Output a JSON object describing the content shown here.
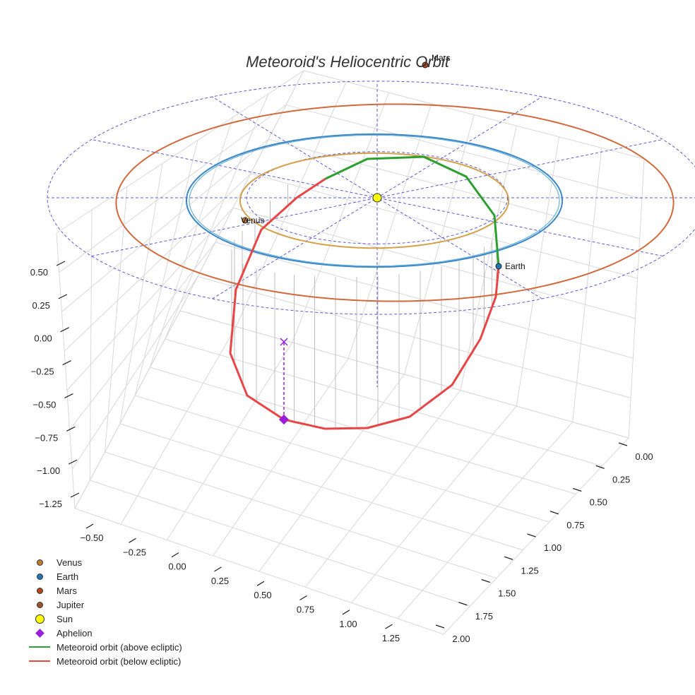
{
  "chart_data": {
    "type": "line",
    "projection": "3d",
    "title": "Meteoroid's Heliocentric Orbit",
    "axes": {
      "x": {
        "ticks": [
          -0.5,
          -0.25,
          0.0,
          0.25,
          0.5,
          0.75,
          1.0,
          1.25
        ],
        "tick_labels": [
          "−0.50",
          "−0.25",
          "0.00",
          "0.25",
          "0.50",
          "0.75",
          "1.00",
          "1.25"
        ]
      },
      "y": {
        "ticks": [
          0.0,
          0.25,
          0.5,
          0.75,
          1.0,
          1.25,
          1.5,
          1.75,
          2.0
        ],
        "tick_labels": [
          "0.00",
          "0.25",
          "0.50",
          "0.75",
          "1.00",
          "1.25",
          "1.50",
          "1.75",
          "2.00"
        ]
      },
      "z": {
        "ticks": [
          0.5,
          0.25,
          0.0,
          -0.25,
          -0.5,
          -0.75,
          -1.0,
          -1.25
        ],
        "tick_labels": [
          "0.50",
          "0.25",
          "0.00",
          "−0.25",
          "−0.50",
          "−0.75",
          "−1.00",
          "−1.25"
        ]
      }
    },
    "grid": true,
    "planet_orbits": [
      {
        "name": "Venus",
        "a_au": 0.72,
        "color": "#d4a04a"
      },
      {
        "name": "Earth",
        "a_au": 1.0,
        "color": "#3a87c8"
      },
      {
        "name": "Mars",
        "a_au": 1.52,
        "color": "#d2693c"
      }
    ],
    "planet_labels": [
      {
        "name": "Venus",
        "text": "Venus",
        "color": "#c47a30"
      },
      {
        "name": "Earth",
        "text": "Earth",
        "color": "#1f77b4"
      },
      {
        "name": "Mars",
        "text": "Mars",
        "color": "#b5441a"
      }
    ],
    "sun": {
      "x": 0,
      "y": 0,
      "z": 0,
      "color": "#ffff00"
    },
    "ecliptic_reference_grid": {
      "style": "dashed",
      "color": "#5a5ad8"
    },
    "meteoroid_orbit": {
      "segments": [
        {
          "name": "Meteoroid orbit (above ecliptic)",
          "color": "#2ca02c"
        },
        {
          "name": "Meteoroid orbit (below ecliptic)",
          "color": "#e84545"
        }
      ]
    },
    "aphelion": {
      "color": "#9b1fd8",
      "marker": "diamond"
    },
    "legend": {
      "position": "bottom-left",
      "entries": [
        {
          "label": "Venus",
          "kind": "dot",
          "color": "#c47a30"
        },
        {
          "label": "Earth",
          "kind": "dot",
          "color": "#1f77b4"
        },
        {
          "label": "Mars",
          "kind": "dot",
          "color": "#b5441a"
        },
        {
          "label": "Jupiter",
          "kind": "dot",
          "color": "#a0522d"
        },
        {
          "label": "Sun",
          "kind": "sun",
          "color": "#ffff00"
        },
        {
          "label": "Aphelion",
          "kind": "diamond",
          "color": "#9b1fd8"
        },
        {
          "label": "Meteoroid orbit (above ecliptic)",
          "kind": "line",
          "color": "#2ca02c"
        },
        {
          "label": "Meteoroid orbit (below ecliptic)",
          "kind": "line",
          "color": "#e84545"
        }
      ]
    }
  }
}
